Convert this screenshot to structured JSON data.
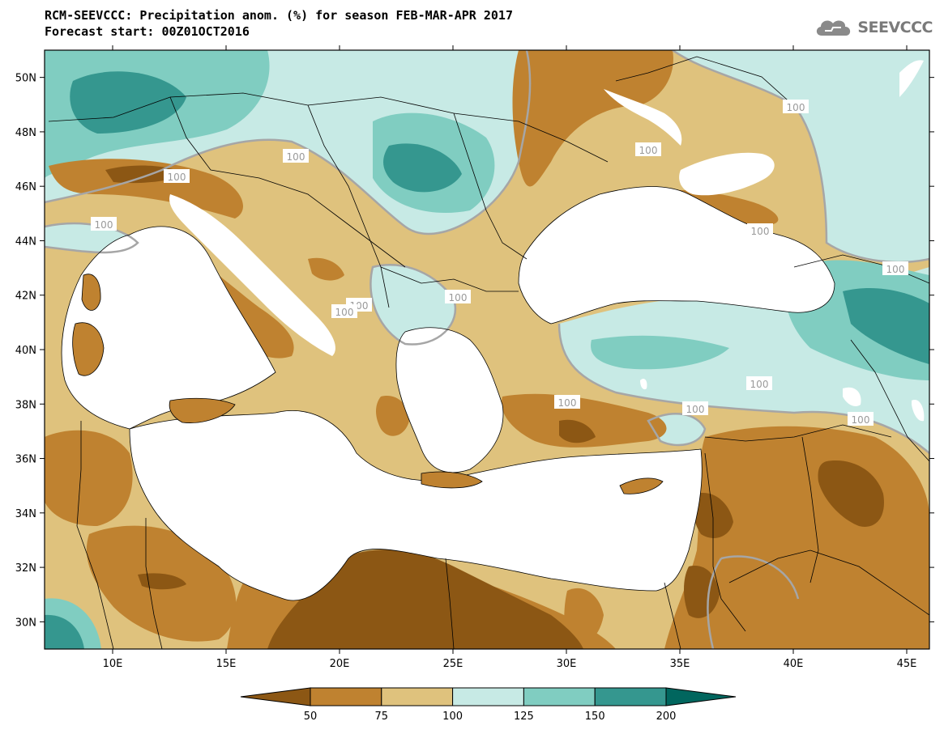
{
  "header": {
    "title_line1": "RCM-SEEVCCC: Precipitation anom. (%) for season FEB-MAR-APR 2017",
    "title_line2": "Forecast start: 00Z01OCT2016",
    "logo_text": "SEEVCCC"
  },
  "map": {
    "variable": "Precipitation anomaly",
    "units": "%",
    "lon_range": [
      7,
      46
    ],
    "lat_range": [
      29,
      51
    ],
    "lon_ticks": [
      "10E",
      "15E",
      "20E",
      "25E",
      "30E",
      "35E",
      "40E",
      "45E"
    ],
    "lat_ticks": [
      "50N",
      "48N",
      "46N",
      "44N",
      "42N",
      "40N",
      "38N",
      "36N",
      "34N",
      "32N",
      "30N"
    ],
    "contour_labels": [
      "100",
      "100",
      "100",
      "100",
      "100",
      "100",
      "100",
      "100",
      "100",
      "100",
      "100",
      "100",
      "100",
      "100"
    ]
  },
  "legend": {
    "boundaries": [
      "50",
      "75",
      "100",
      "125",
      "150",
      "200"
    ],
    "colors": [
      "#8c5714",
      "#bf8230",
      "#dfc27d",
      "#c7eae5",
      "#80cdc1",
      "#35978f",
      "#01665e"
    ]
  }
}
